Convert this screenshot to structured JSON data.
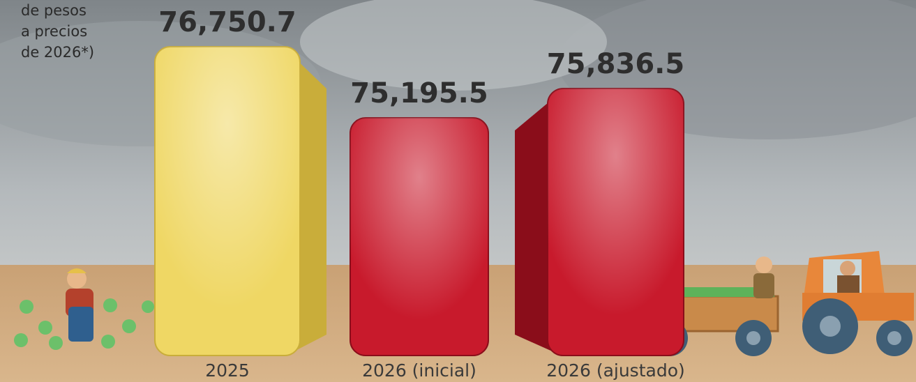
{
  "chart_data": {
    "type": "bar",
    "subtitle": [
      "de pesos",
      "a precios",
      "de 2026*)"
    ],
    "categories": [
      "2025",
      "2026 (inicial)",
      "2026 (ajustado)"
    ],
    "values": [
      76750.7,
      75195.5,
      75836.5
    ],
    "value_labels": [
      "76,750.7",
      "75,195.5",
      "75,836.5"
    ],
    "colors": [
      "#efd764",
      "#c81a2c",
      "#c81a2c"
    ],
    "ylim": [
      70000,
      77500
    ]
  }
}
